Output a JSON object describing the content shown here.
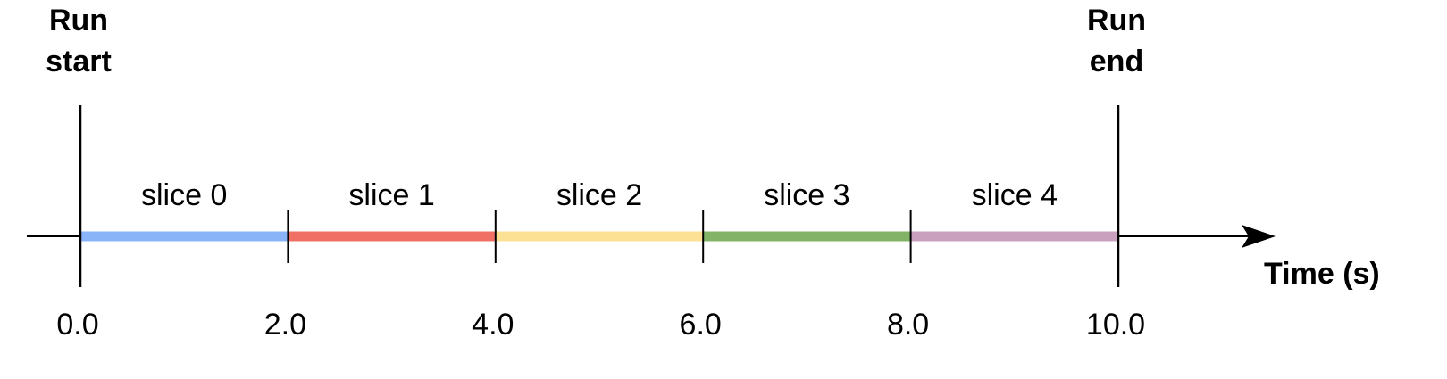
{
  "run_start": {
    "line1": "Run",
    "line2": "start",
    "time": 0.0
  },
  "run_end": {
    "line1": "Run",
    "line2": "end",
    "time": 10.0
  },
  "axis_title": "Time (s)",
  "ticks": [
    {
      "value": 0.0,
      "label": "0.0"
    },
    {
      "value": 2.0,
      "label": "2.0"
    },
    {
      "value": 4.0,
      "label": "4.0"
    },
    {
      "value": 6.0,
      "label": "6.0"
    },
    {
      "value": 8.0,
      "label": "8.0"
    },
    {
      "value": 10.0,
      "label": "10.0"
    }
  ],
  "slices": [
    {
      "label": "slice 0",
      "start": 0.0,
      "end": 2.0,
      "color": "#8ab4f8"
    },
    {
      "label": "slice 1",
      "start": 2.0,
      "end": 4.0,
      "color": "#f07066"
    },
    {
      "label": "slice 2",
      "start": 4.0,
      "end": 6.0,
      "color": "#fce194"
    },
    {
      "label": "slice 3",
      "start": 6.0,
      "end": 8.0,
      "color": "#82b366"
    },
    {
      "label": "slice 4",
      "start": 8.0,
      "end": 10.0,
      "color": "#c9a0bd"
    }
  ]
}
